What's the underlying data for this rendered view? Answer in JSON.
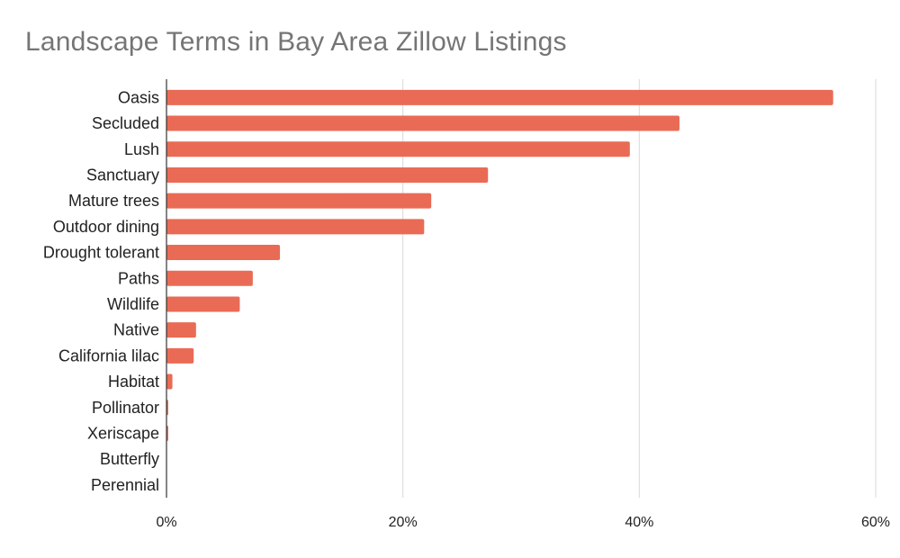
{
  "chart_data": {
    "type": "bar",
    "orientation": "horizontal",
    "title": "Landscape Terms in Bay Area Zillow Listings",
    "xlabel": "",
    "ylabel": "",
    "categories": [
      "Oasis",
      "Secluded",
      "Lush",
      "Sanctuary",
      "Mature trees",
      "Outdoor dining",
      "Drought tolerant",
      "Paths",
      "Wildlife",
      "Native",
      "California lilac",
      "Habitat",
      "Pollinator",
      "Xeriscape",
      "Butterfly",
      "Perennial"
    ],
    "values": [
      56.4,
      43.4,
      39.2,
      27.2,
      22.4,
      21.8,
      9.6,
      7.3,
      6.2,
      2.5,
      2.3,
      0.5,
      0.15,
      0.15,
      0,
      0
    ],
    "value_unit": "%",
    "xlim": [
      0,
      60
    ],
    "x_ticks": [
      "0%",
      "20%",
      "40%",
      "60%"
    ],
    "x_tick_values": [
      0,
      20,
      40,
      60
    ],
    "grid": true,
    "legend": "none",
    "colors": {
      "bar": "#ea6b55",
      "grid": "#d9d9d9",
      "axis": "#333333",
      "title": "#757575"
    }
  }
}
